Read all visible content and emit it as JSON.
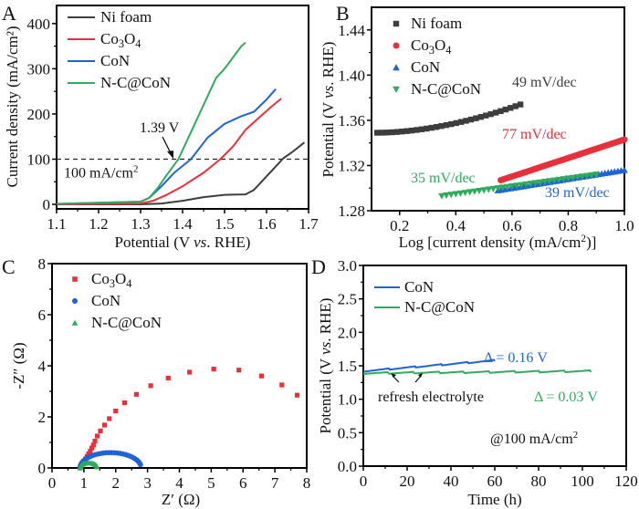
{
  "colors": {
    "ni": "#3d3d3d",
    "co3o4": "#e8303a",
    "con": "#1f63d6",
    "nc": "#2eab5b",
    "axis": "#000000"
  },
  "chart_data": [
    {
      "panel": "A",
      "type": "line",
      "xlabel_parts": [
        "Potential (V ",
        "vs",
        ". RHE)"
      ],
      "ylabel": "Current density (mA/cm²)",
      "xlim": [
        1.1,
        1.7
      ],
      "ylim": [
        -10,
        440
      ],
      "xticks": [
        "1.1",
        "1.2",
        "1.3",
        "1.4",
        "1.5",
        "1.6",
        "1.7"
      ],
      "yticks": [
        "0",
        "100",
        "200",
        "300",
        "400"
      ],
      "legend": [
        "Ni foam",
        "Co₃O₄",
        "CoN",
        "N-C@CoN"
      ],
      "annotations": {
        "ref_line_label": "100 mA/cm²",
        "ref_line_value": 100,
        "point_label": "1.39 V",
        "point_x": 1.39
      },
      "series": [
        {
          "name": "Ni foam",
          "key": "ni",
          "x": [
            1.1,
            1.3,
            1.35,
            1.4,
            1.45,
            1.5,
            1.55,
            1.57,
            1.6,
            1.62,
            1.64,
            1.66,
            1.69
          ],
          "y": [
            0,
            0,
            2,
            8,
            16,
            21,
            22,
            32,
            62,
            82,
            102,
            115,
            137
          ]
        },
        {
          "name": "Co₃O₄",
          "key": "co3o4",
          "x": [
            1.1,
            1.3,
            1.33,
            1.36,
            1.4,
            1.45,
            1.49,
            1.52,
            1.55,
            1.58,
            1.61,
            1.635
          ],
          "y": [
            0,
            2,
            8,
            20,
            40,
            70,
            100,
            128,
            165,
            190,
            215,
            234
          ]
        },
        {
          "name": "CoN",
          "key": "con",
          "x": [
            1.1,
            1.3,
            1.32,
            1.35,
            1.38,
            1.42,
            1.46,
            1.5,
            1.54,
            1.57,
            1.6,
            1.622
          ],
          "y": [
            1,
            6,
            14,
            40,
            70,
            100,
            148,
            178,
            195,
            205,
            232,
            255
          ]
        },
        {
          "name": "N-C@CoN",
          "key": "nc",
          "x": [
            1.1,
            1.3,
            1.32,
            1.34,
            1.36,
            1.39,
            1.42,
            1.45,
            1.48,
            1.5,
            1.52,
            1.54,
            1.55
          ],
          "y": [
            1,
            6,
            14,
            35,
            62,
            100,
            160,
            220,
            280,
            300,
            325,
            350,
            358
          ]
        }
      ]
    },
    {
      "panel": "B",
      "type": "scatter",
      "xlabel": "Log [current density (mA/cm²)]",
      "ylabel_parts": [
        "Potential (V ",
        "vs",
        ". RHE)"
      ],
      "xlim": [
        0.1,
        1.0
      ],
      "ylim": [
        1.28,
        1.46
      ],
      "xticks": [
        "0.2",
        "0.4",
        "0.6",
        "0.8",
        "1.0"
      ],
      "yticks": [
        "1.28",
        "1.32",
        "1.36",
        "1.40",
        "1.44"
      ],
      "legend": [
        "Ni foam",
        "Co₃O₄",
        "CoN",
        "N-C@CoN"
      ],
      "tafel_labels": [
        "49 mV/dec",
        "77 mV/dec",
        "39 mV/dec",
        "35 mV/dec"
      ],
      "series": [
        {
          "name": "Ni foam",
          "key": "ni",
          "marker": "square",
          "x_range": [
            0.12,
            0.63
          ],
          "y_range": [
            1.349,
            1.374
          ],
          "curve": 1.8,
          "n": 30
        },
        {
          "name": "Co₃O₄",
          "key": "co3o4",
          "marker": "circle",
          "x_range": [
            0.56,
            1.0
          ],
          "y_range": [
            1.307,
            1.343
          ],
          "curve": 1.0,
          "n": 60
        },
        {
          "name": "CoN",
          "key": "con",
          "marker": "triangle-up",
          "x_range": [
            0.55,
            1.0
          ],
          "y_range": [
            1.298,
            1.316
          ],
          "curve": 1.0,
          "n": 40
        },
        {
          "name": "N-C@CoN",
          "key": "nc",
          "marker": "triangle-down",
          "x_range": [
            0.35,
            0.9
          ],
          "y_range": [
            1.293,
            1.312
          ],
          "curve": 1.0,
          "n": 34
        }
      ]
    },
    {
      "panel": "C",
      "type": "scatter",
      "xlabel": "Z′ (Ω)",
      "ylabel": "-Z″ (Ω)",
      "xlim": [
        0,
        8
      ],
      "ylim": [
        0,
        8
      ],
      "xticks": [
        "0",
        "1",
        "2",
        "3",
        "4",
        "5",
        "6",
        "7",
        "8"
      ],
      "yticks": [
        "0",
        "2",
        "4",
        "6",
        "8"
      ],
      "legend": [
        "Co₃O₄",
        "CoN",
        "N-C@CoN"
      ],
      "series": [
        {
          "name": "Co₃O₄",
          "key": "co3o4",
          "marker": "square",
          "x": [
            0.9,
            0.95,
            1.0,
            1.05,
            1.1,
            1.15,
            1.2,
            1.25,
            1.3,
            1.35,
            1.42,
            1.52,
            1.65,
            1.8,
            2.0,
            2.28,
            2.65,
            3.1,
            3.65,
            4.32,
            5.08,
            5.87,
            6.58,
            7.22,
            7.7
          ],
          "y": [
            0.05,
            0.15,
            0.25,
            0.35,
            0.45,
            0.55,
            0.65,
            0.78,
            0.9,
            1.05,
            1.25,
            1.45,
            1.68,
            1.93,
            2.23,
            2.55,
            2.88,
            3.22,
            3.52,
            3.75,
            3.87,
            3.83,
            3.6,
            3.25,
            2.85
          ]
        },
        {
          "name": "CoN",
          "key": "con",
          "marker": "circle",
          "semicircle": {
            "x0": 0.88,
            "x1": 2.8,
            "peak": 0.6
          },
          "n": 32
        },
        {
          "name": "N-C@CoN",
          "key": "nc",
          "marker": "triangle-up",
          "semicircle": {
            "x0": 0.88,
            "x1": 1.42,
            "peak": 0.2
          },
          "n": 16
        }
      ]
    },
    {
      "panel": "D",
      "type": "line",
      "xlabel": "Time (h)",
      "ylabel_parts": [
        "Potential (V ",
        "vs",
        ". RHE)"
      ],
      "xlim": [
        0,
        120
      ],
      "ylim": [
        0,
        3.0
      ],
      "xticks": [
        "0",
        "20",
        "40",
        "60",
        "80",
        "100",
        "120"
      ],
      "yticks": [
        "0.0",
        "0.5",
        "1.0",
        "1.5",
        "2.0",
        "2.5",
        "3.0"
      ],
      "legend": [
        "CoN",
        "N-C@CoN"
      ],
      "annotations": {
        "con_delta": "Δ = 0.16 V",
        "nc_delta": "Δ = 0.03 V",
        "refresh": "refresh electrolyte",
        "condition": "@100 mA/cm²"
      },
      "series": [
        {
          "name": "CoN",
          "key": "con",
          "x_range": [
            0,
            60
          ],
          "start": 1.42,
          "end": 1.58,
          "refresh_every": 12,
          "drop": 0.02
        },
        {
          "name": "N-C@CoN",
          "key": "nc",
          "x_range": [
            0,
            104
          ],
          "start": 1.39,
          "end": 1.42,
          "refresh_every": 11.5,
          "drop": 0.025
        }
      ]
    }
  ]
}
